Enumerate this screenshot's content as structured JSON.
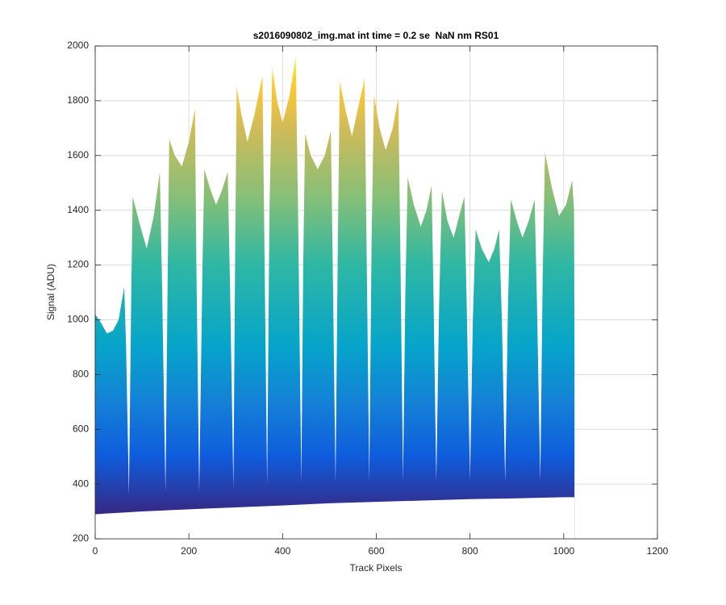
{
  "chart_data": {
    "type": "area",
    "title": "s2016090802_img.mat int time = 0.2 se  NaN nm RS01",
    "xlabel": "Track Pixels",
    "ylabel": "Signal (ADU)",
    "xlim": [
      0,
      1200
    ],
    "ylim": [
      200,
      2000
    ],
    "xticks": [
      0,
      200,
      400,
      600,
      800,
      1000,
      1200
    ],
    "yticks": [
      200,
      400,
      600,
      800,
      1000,
      1200,
      1400,
      1600,
      1800,
      2000
    ],
    "grid": true,
    "x": [
      0,
      12,
      25,
      38,
      50,
      62,
      66,
      72,
      77,
      80,
      95,
      110,
      125,
      138,
      143,
      150,
      155,
      158,
      170,
      185,
      200,
      213,
      216,
      222,
      229,
      233,
      245,
      258,
      270,
      283,
      288,
      295,
      299,
      302,
      312,
      325,
      340,
      357,
      361,
      367,
      372,
      378,
      388,
      400,
      415,
      428,
      433,
      440,
      444,
      448,
      460,
      475,
      490,
      503,
      507,
      513,
      518,
      522,
      535,
      548,
      562,
      575,
      579,
      585,
      590,
      595,
      607,
      620,
      635,
      647,
      651,
      657,
      662,
      667,
      680,
      695,
      707,
      718,
      722,
      728,
      734,
      740,
      752,
      765,
      777,
      788,
      793,
      800,
      806,
      812,
      825,
      840,
      852,
      862,
      868,
      875,
      881,
      887,
      900,
      912,
      925,
      938,
      943,
      950,
      955,
      960,
      975,
      990,
      1005,
      1018,
      1022,
      1023
    ],
    "values": [
      1020,
      990,
      950,
      960,
      1000,
      1120,
      900,
      360,
      1100,
      1450,
      1350,
      1260,
      1380,
      1540,
      1100,
      370,
      1200,
      1660,
      1600,
      1560,
      1650,
      1770,
      1200,
      370,
      1200,
      1550,
      1480,
      1420,
      1470,
      1540,
      1100,
      385,
      1300,
      1850,
      1750,
      1650,
      1750,
      1890,
      1300,
      395,
      1400,
      1920,
      1800,
      1720,
      1820,
      1960,
      1400,
      405,
      1200,
      1680,
      1600,
      1550,
      1600,
      1690,
      1200,
      405,
      1300,
      1870,
      1760,
      1670,
      1780,
      1880,
      1300,
      410,
      1300,
      1820,
      1700,
      1620,
      1700,
      1810,
      1300,
      410,
      1100,
      1520,
      1420,
      1340,
      1400,
      1490,
      1100,
      410,
      1050,
      1470,
      1360,
      1300,
      1380,
      1450,
      1050,
      410,
      1000,
      1330,
      1260,
      1210,
      1260,
      1330,
      1000,
      410,
      1050,
      1440,
      1360,
      1300,
      1360,
      1440,
      1050,
      410,
      1150,
      1610,
      1480,
      1380,
      1420,
      1510,
      1400,
      850
    ],
    "floor_x": [
      0,
      100,
      200,
      300,
      400,
      500,
      600,
      700,
      800,
      900,
      1000,
      1023
    ],
    "floor": [
      290,
      300,
      308,
      315,
      322,
      330,
      335,
      340,
      345,
      348,
      352,
      352
    ],
    "colormap": [
      {
        "value": 300,
        "color": "#352a87"
      },
      {
        "value": 500,
        "color": "#0f5cdd"
      },
      {
        "value": 700,
        "color": "#1481d6"
      },
      {
        "value": 900,
        "color": "#06a4ca"
      },
      {
        "value": 1200,
        "color": "#2eb7a4"
      },
      {
        "value": 1450,
        "color": "#87bf77"
      },
      {
        "value": 1700,
        "color": "#d1bb59"
      },
      {
        "value": 1850,
        "color": "#fec832"
      },
      {
        "value": 2000,
        "color": "#f9fb0e"
      }
    ]
  }
}
